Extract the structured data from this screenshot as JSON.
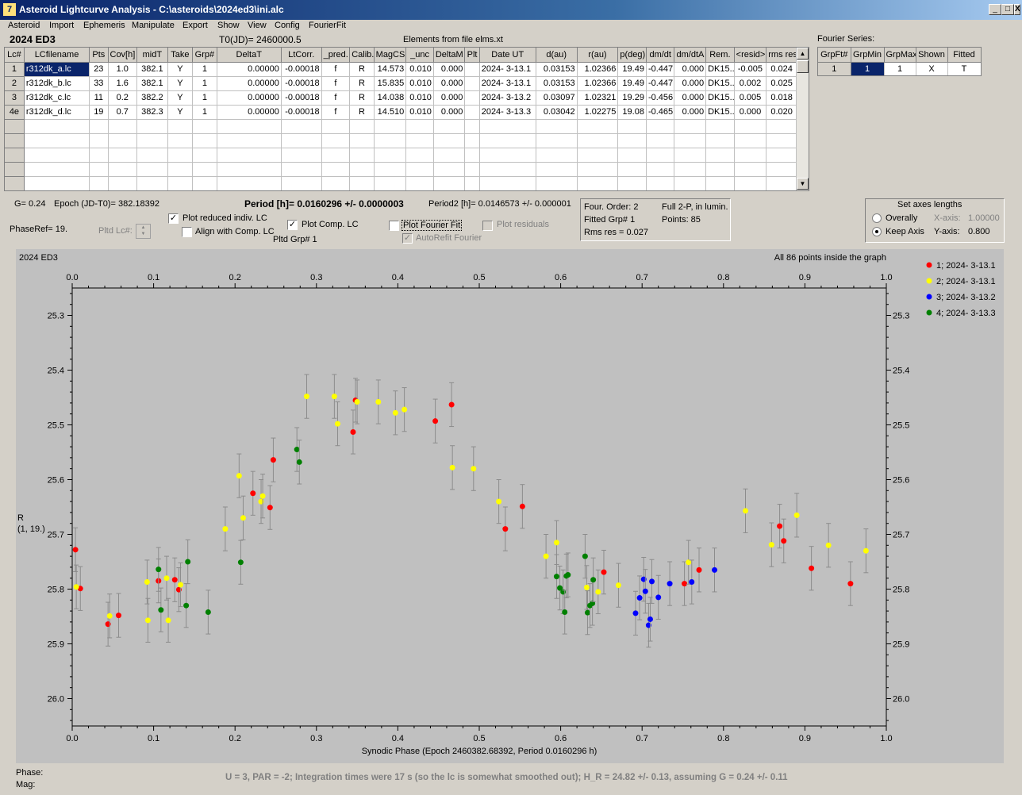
{
  "window": {
    "title": "Asteroid Lightcurve Analysis - C:\\asteroids\\2024ed3\\ini.alc",
    "icon_text": "7",
    "controls": [
      "_",
      "□",
      "X"
    ]
  },
  "menu": [
    "Asteroid",
    "Import",
    "Ephemeris",
    "Manipulate",
    "Export",
    "Show",
    "View",
    "Config",
    "FourierFit"
  ],
  "header": {
    "asteroid": "2024 ED3",
    "t0": "T0(JD)= 2460000.5",
    "elements": "Elements from file elms.xt",
    "fourier_series_label": "Fourier Series:"
  },
  "lc_table": {
    "columns": [
      "Lc#",
      "LCfilename",
      "Pts",
      "Cov[h]",
      "midT",
      "Take",
      "Grp#",
      "DeltaT",
      "LtCorr.",
      "_pred.",
      "Calib.",
      "MagCS",
      "_unc",
      "DeltaM",
      "Plt",
      "Date UT",
      "d(au)",
      "r(au)",
      "p(deg)",
      "dm/dt",
      "dm/dtA",
      "Rem.",
      "<resid>",
      "rms res"
    ],
    "rows": [
      [
        "1",
        "r312dk_a.lc",
        "23",
        "1.0",
        "382.1",
        "Y",
        "1",
        "0.00000",
        "-0.00018",
        "f",
        "R",
        "14.573",
        "0.010",
        "0.000",
        "",
        "2024- 3-13.1",
        "0.03153",
        "1.02366",
        "19.49",
        "-0.447",
        "0.000",
        "DK15...",
        "-0.005",
        "0.024"
      ],
      [
        "2",
        "r312dk_b.lc",
        "33",
        "1.6",
        "382.1",
        "Y",
        "1",
        "0.00000",
        "-0.00018",
        "f",
        "R",
        "15.835",
        "0.010",
        "0.000",
        "",
        "2024- 3-13.1",
        "0.03153",
        "1.02366",
        "19.49",
        "-0.447",
        "0.000",
        "DK15...",
        "0.002",
        "0.025"
      ],
      [
        "3",
        "r312dk_c.lc",
        "11",
        "0.2",
        "382.2",
        "Y",
        "1",
        "0.00000",
        "-0.00018",
        "f",
        "R",
        "14.038",
        "0.010",
        "0.000",
        "",
        "2024- 3-13.2",
        "0.03097",
        "1.02321",
        "19.29",
        "-0.456",
        "0.000",
        "DK15...",
        "0.005",
        "0.018"
      ],
      [
        "4e",
        "r312dk_d.lc",
        "19",
        "0.7",
        "382.3",
        "Y",
        "1",
        "0.00000",
        "-0.00018",
        "f",
        "R",
        "14.510",
        "0.010",
        "0.000",
        "",
        "2024- 3-13.3",
        "0.03042",
        "1.02275",
        "19.08",
        "-0.465",
        "0.000",
        "DK15...",
        "0.000",
        "0.020"
      ]
    ],
    "empty_rows": 6
  },
  "fourier_table": {
    "columns": [
      "GrpFt#",
      "GrpMin",
      "GrpMax",
      "Shown",
      "Fitted"
    ],
    "rows": [
      [
        "1",
        "1",
        "1",
        "X",
        "T"
      ]
    ]
  },
  "params": {
    "g": "G= 0.24",
    "epoch": "Epoch (JD-T0)= 382.18392",
    "period": "Period [h]= 0.0160296 +/- 0.0000003",
    "period2": "Period2 [h]= 0.0146573 +/- 0.000001",
    "phaseref": "PhaseRef= 19.",
    "pltd_lc": "Pltd Lc#:",
    "pltd_grp": "Pltd Grp#  1"
  },
  "options": {
    "plot_reduced": {
      "label": "Plot reduced indiv. LC",
      "checked": true
    },
    "align_comp": {
      "label": "Align with Comp. LC",
      "checked": false
    },
    "plot_comp": {
      "label": "Plot Comp. LC",
      "checked": true
    },
    "plot_fourier": {
      "label": "Plot Fourier Fit",
      "checked": false
    },
    "autorefit": {
      "label": "AutoRefit Fourier",
      "checked": true,
      "disabled": true
    },
    "plot_residuals": {
      "label": "Plot residuals",
      "checked": false,
      "disabled": true
    }
  },
  "fourier_info": {
    "order": "Four. Order:  2",
    "full": "Full 2-P, in lumin.",
    "fitted_grp": "Fitted Grp# 1",
    "points": "Points: 85",
    "rms": "Rms res     = 0.027"
  },
  "axes_box": {
    "title": "Set axes lengths",
    "overally": "Overally",
    "keep_axis": "Keep Axis",
    "selected": "keep_axis",
    "x_label": "X-axis:",
    "x_value": "1.00000",
    "y_label": "Y-axis:",
    "y_value": "0.800"
  },
  "plot": {
    "title": "2024 ED3",
    "status": "All 86 points inside the graph",
    "phase_label": "Phase:",
    "mag_label": "Mag:",
    "footer": "U = 3, PAR = -2; Integration times were 17 s (so the lc is somewhat smoothed out); H_R = 24.82 +/- 0.13, assuming G = 0.24 +/- 0.11"
  },
  "chart_data": {
    "type": "scatter",
    "title": "2024 ED3",
    "xlabel": "Synodic Phase (Epoch 2460382.68392, Period 0.0160296 h)",
    "ylabel": "R\n(1, 19.)",
    "xlim": [
      0,
      1
    ],
    "ylim": [
      26.05,
      25.25
    ],
    "y_inverted": true,
    "x_ticks": [
      "0.0",
      "0.1",
      "0.2",
      "0.3",
      "0.4",
      "0.5",
      "0.6",
      "0.7",
      "0.8",
      "0.9",
      "1.0"
    ],
    "y_ticks": [
      "25.3",
      "25.4",
      "25.5",
      "25.6",
      "25.7",
      "25.8",
      "25.9",
      "26.0"
    ],
    "error_bar": 0.04,
    "legend_position": "top-right",
    "series": [
      {
        "name": "1; 2024- 3-13.1",
        "color": "#ff0000",
        "points": [
          [
            0.004,
            25.728
          ],
          [
            0.01,
            25.799
          ],
          [
            0.044,
            25.864
          ],
          [
            0.057,
            25.848
          ],
          [
            0.106,
            25.785
          ],
          [
            0.126,
            25.783
          ],
          [
            0.131,
            25.801
          ],
          [
            0.222,
            25.625
          ],
          [
            0.243,
            25.651
          ],
          [
            0.247,
            25.564
          ],
          [
            0.345,
            25.513
          ],
          [
            0.348,
            25.455
          ],
          [
            0.446,
            25.493
          ],
          [
            0.466,
            25.463
          ],
          [
            0.532,
            25.69
          ],
          [
            0.553,
            25.649
          ],
          [
            0.653,
            25.769
          ],
          [
            0.752,
            25.79
          ],
          [
            0.77,
            25.765
          ],
          [
            0.869,
            25.685
          ],
          [
            0.874,
            25.712
          ],
          [
            0.908,
            25.762
          ],
          [
            0.956,
            25.79
          ]
        ]
      },
      {
        "name": "2; 2024- 3-13.1",
        "color": "#ffff00",
        "points": [
          [
            0.005,
            25.796
          ],
          [
            0.046,
            25.849
          ],
          [
            0.092,
            25.787
          ],
          [
            0.093,
            25.857
          ],
          [
            0.116,
            25.78
          ],
          [
            0.118,
            25.857
          ],
          [
            0.133,
            25.792
          ],
          [
            0.188,
            25.69
          ],
          [
            0.205,
            25.593
          ],
          [
            0.21,
            25.67
          ],
          [
            0.232,
            25.64
          ],
          [
            0.234,
            25.63
          ],
          [
            0.288,
            25.448
          ],
          [
            0.322,
            25.448
          ],
          [
            0.326,
            25.498
          ],
          [
            0.35,
            25.458
          ],
          [
            0.376,
            25.458
          ],
          [
            0.397,
            25.478
          ],
          [
            0.408,
            25.472
          ],
          [
            0.467,
            25.578
          ],
          [
            0.493,
            25.58
          ],
          [
            0.524,
            25.64
          ],
          [
            0.582,
            25.74
          ],
          [
            0.595,
            25.715
          ],
          [
            0.632,
            25.797
          ],
          [
            0.646,
            25.805
          ],
          [
            0.671,
            25.793
          ],
          [
            0.757,
            25.751
          ],
          [
            0.827,
            25.657
          ],
          [
            0.859,
            25.719
          ],
          [
            0.89,
            25.665
          ],
          [
            0.929,
            25.72
          ],
          [
            0.975,
            25.73
          ]
        ]
      },
      {
        "name": "3; 2024- 3-13.2",
        "color": "#0000ff",
        "points": [
          [
            0.692,
            25.844
          ],
          [
            0.697,
            25.816
          ],
          [
            0.702,
            25.782
          ],
          [
            0.704,
            25.804
          ],
          [
            0.708,
            25.866
          ],
          [
            0.71,
            25.855
          ],
          [
            0.712,
            25.786
          ],
          [
            0.72,
            25.815
          ],
          [
            0.734,
            25.79
          ],
          [
            0.761,
            25.787
          ],
          [
            0.789,
            25.765
          ]
        ]
      },
      {
        "name": "4; 2024- 3-13.3",
        "color": "#008000",
        "points": [
          [
            0.106,
            25.764
          ],
          [
            0.109,
            25.838
          ],
          [
            0.14,
            25.83
          ],
          [
            0.142,
            25.75
          ],
          [
            0.167,
            25.842
          ],
          [
            0.207,
            25.751
          ],
          [
            0.276,
            25.545
          ],
          [
            0.279,
            25.568
          ],
          [
            0.595,
            25.777
          ],
          [
            0.599,
            25.798
          ],
          [
            0.603,
            25.805
          ],
          [
            0.605,
            25.842
          ],
          [
            0.607,
            25.776
          ],
          [
            0.609,
            25.774
          ],
          [
            0.63,
            25.74
          ],
          [
            0.633,
            25.843
          ],
          [
            0.636,
            25.83
          ],
          [
            0.639,
            25.826
          ],
          [
            0.64,
            25.783
          ]
        ]
      }
    ]
  }
}
